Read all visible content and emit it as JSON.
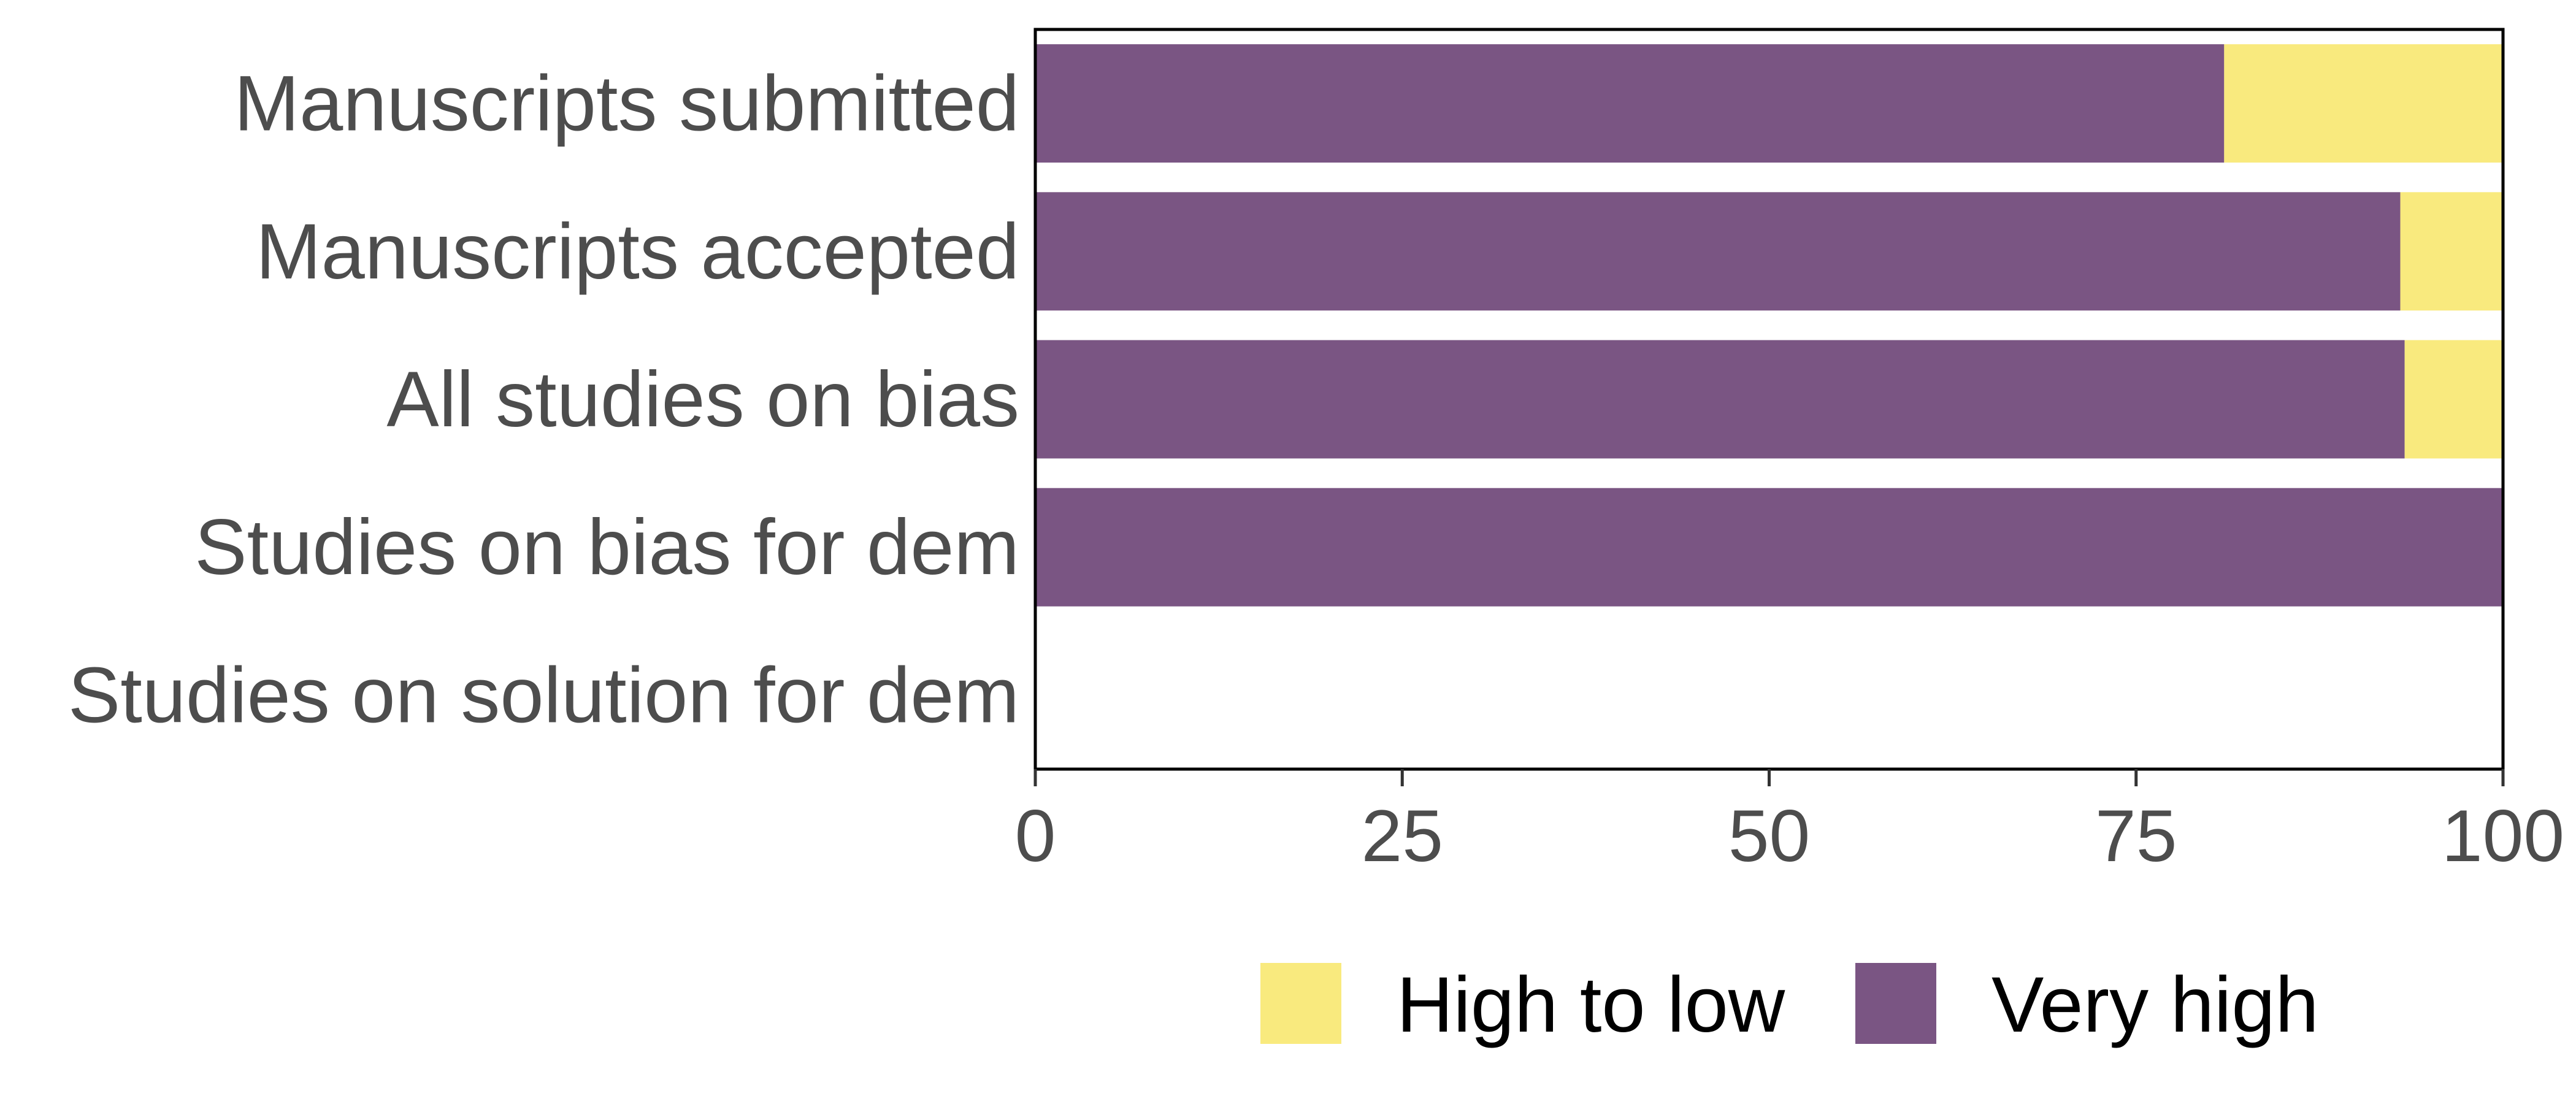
{
  "chart_data": {
    "type": "bar",
    "orientation": "horizontal",
    "stacked": true,
    "categories": [
      "Manuscripts submitted",
      "Manuscripts accepted",
      "All studies on bias",
      "Studies on bias for dem",
      "Studies on solution for dem"
    ],
    "series": [
      {
        "name": "Very high",
        "color": "#7a5583",
        "values": [
          81,
          93,
          93.3,
          100,
          0
        ]
      },
      {
        "name": "High to low",
        "color": "#f9ea7e",
        "values": [
          19,
          7,
          6.7,
          0,
          0
        ]
      }
    ],
    "xlim": [
      0,
      100
    ],
    "xticks": [
      "0",
      "25",
      "50",
      "75",
      "100"
    ],
    "xlabel": "",
    "ylabel": "",
    "legend": {
      "position": "bottom",
      "order": [
        "High to low",
        "Very high"
      ]
    },
    "grid": false
  }
}
